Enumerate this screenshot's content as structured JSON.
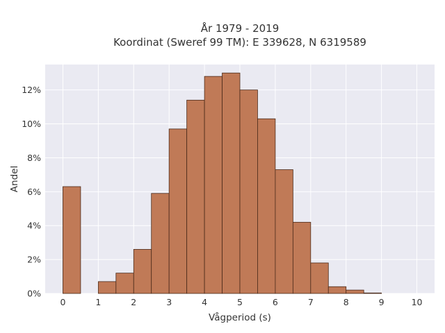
{
  "chart_data": {
    "type": "bar",
    "title_lines": [
      "År 1979 - 2019",
      "Koordinat (Sweref 99 TM): E 339628, N 6319589"
    ],
    "xlabel": "Vågperiod (s)",
    "ylabel": "Andel",
    "xlim": [
      -0.5,
      10.5
    ],
    "ylim": [
      0,
      0.135
    ],
    "x_ticks": [
      0,
      1,
      2,
      3,
      4,
      5,
      6,
      7,
      8,
      9,
      10
    ],
    "x_tick_labels": [
      "0",
      "1",
      "2",
      "3",
      "4",
      "5",
      "6",
      "7",
      "8",
      "9",
      "10"
    ],
    "y_ticks": [
      0,
      0.02,
      0.04,
      0.06,
      0.08,
      0.1,
      0.12
    ],
    "y_tick_labels": [
      "0%",
      "2%",
      "4%",
      "6%",
      "8%",
      "10%",
      "12%"
    ],
    "bin_width": 0.5,
    "bins": [
      {
        "x0": 0.0,
        "value": 0.063
      },
      {
        "x0": 1.0,
        "value": 0.007
      },
      {
        "x0": 1.5,
        "value": 0.012
      },
      {
        "x0": 2.0,
        "value": 0.026
      },
      {
        "x0": 2.5,
        "value": 0.059
      },
      {
        "x0": 3.0,
        "value": 0.097
      },
      {
        "x0": 3.5,
        "value": 0.114
      },
      {
        "x0": 4.0,
        "value": 0.128
      },
      {
        "x0": 4.5,
        "value": 0.13
      },
      {
        "x0": 5.0,
        "value": 0.12
      },
      {
        "x0": 5.5,
        "value": 0.103
      },
      {
        "x0": 6.0,
        "value": 0.073
      },
      {
        "x0": 6.5,
        "value": 0.042
      },
      {
        "x0": 7.0,
        "value": 0.018
      },
      {
        "x0": 7.5,
        "value": 0.004
      },
      {
        "x0": 8.0,
        "value": 0.002
      },
      {
        "x0": 8.5,
        "value": 0.0003
      }
    ],
    "grid": true,
    "colors": {
      "bar_fill": "#c07a57",
      "bar_edge": "#4a2a1a",
      "plot_background": "#eaeaf2",
      "grid": "#ffffff"
    }
  }
}
